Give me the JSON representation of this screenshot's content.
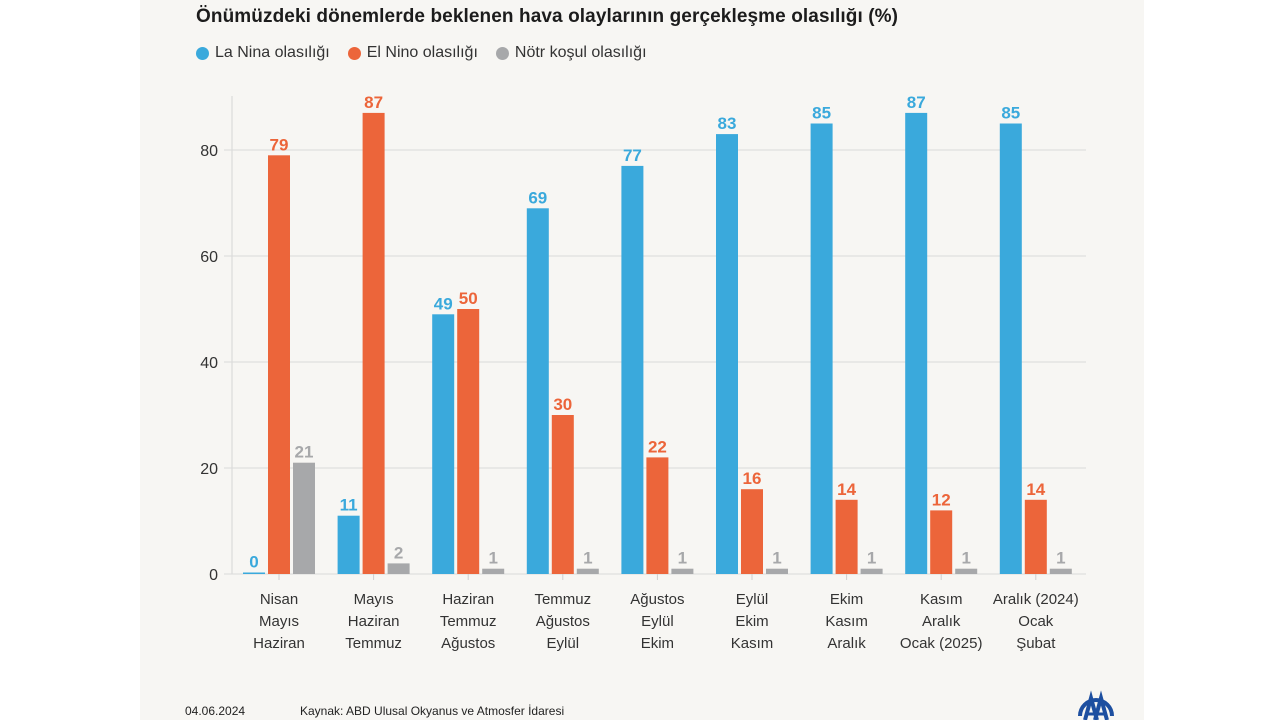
{
  "chart_data": {
    "type": "bar",
    "title": "Önümüzdeki dönemlerde beklenen hava olaylarının gerçekleşme olasılığı (%)",
    "xlabel": "",
    "ylabel": "",
    "ylim": [
      0,
      90
    ],
    "yticks": [
      0,
      20,
      40,
      60,
      80
    ],
    "grid": true,
    "legend_position": "top-left",
    "categories": [
      [
        "Nisan",
        "Mayıs",
        "Haziran"
      ],
      [
        "Mayıs",
        "Haziran",
        "Temmuz"
      ],
      [
        "Haziran",
        "Temmuz",
        "Ağustos"
      ],
      [
        "Temmuz",
        "Ağustos",
        "Eylül"
      ],
      [
        "Ağustos",
        "Eylül",
        "Ekim"
      ],
      [
        "Eylül",
        "Ekim",
        "Kasım"
      ],
      [
        "Ekim",
        "Kasım",
        "Aralık"
      ],
      [
        "Kasım",
        "Aralık",
        "Ocak (2025)"
      ],
      [
        "Aralık (2024)",
        "Ocak",
        "Şubat"
      ]
    ],
    "series": [
      {
        "name": "La Nina olasılığı",
        "color": "#3aa9dc",
        "values": [
          0,
          11,
          49,
          69,
          77,
          83,
          85,
          87,
          85
        ]
      },
      {
        "name": "El Nino olasılığı",
        "color": "#ec653a",
        "values": [
          79,
          87,
          50,
          30,
          22,
          16,
          14,
          12,
          14
        ]
      },
      {
        "name": "Nötr koşul olasılığı",
        "color": "#a7a8aa",
        "values": [
          21,
          2,
          1,
          1,
          1,
          1,
          1,
          1,
          1
        ]
      }
    ]
  },
  "footer": {
    "date": "04.06.2024",
    "source": "Kaynak: ABD Ulusal Okyanus ve Atmosfer İdaresi",
    "logo": "aa-logo-icon"
  }
}
